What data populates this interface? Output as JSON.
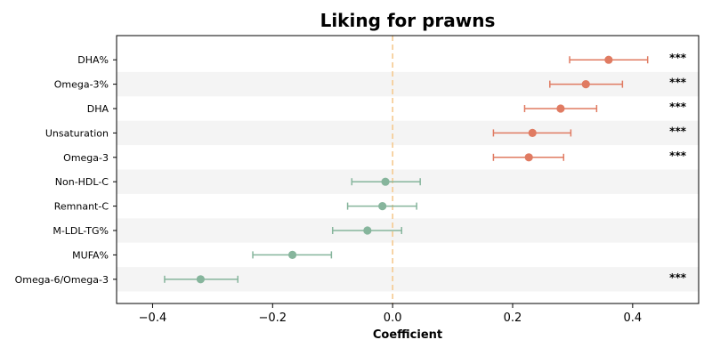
{
  "chart_data": {
    "type": "forest",
    "title": "Liking for prawns",
    "xlabel": "Coefficient",
    "ylabel": "",
    "xlim": [
      -0.46,
      0.51
    ],
    "xticks": [
      -0.4,
      -0.2,
      0.0,
      0.2,
      0.4
    ],
    "xtick_labels": [
      "−0.4",
      "−0.2",
      "0.0",
      "0.2",
      "0.4"
    ],
    "reference_line": 0.0,
    "row_shading": "alternating light grey",
    "colors": {
      "positive": "#e07b62",
      "negative": "#86b59c",
      "reference": "#f5c98f",
      "shade": "#f4f4f4"
    },
    "rows": [
      {
        "label": "DHA%",
        "estimate": 0.36,
        "lower": 0.295,
        "upper": 0.425,
        "sig": "***"
      },
      {
        "label": "Omega-3%",
        "estimate": 0.322,
        "lower": 0.262,
        "upper": 0.383,
        "sig": "***"
      },
      {
        "label": "DHA",
        "estimate": 0.28,
        "lower": 0.22,
        "upper": 0.34,
        "sig": "***"
      },
      {
        "label": "Unsaturation",
        "estimate": 0.233,
        "lower": 0.168,
        "upper": 0.297,
        "sig": "***"
      },
      {
        "label": "Omega-3",
        "estimate": 0.227,
        "lower": 0.168,
        "upper": 0.285,
        "sig": "***"
      },
      {
        "label": "Non-HDL-C",
        "estimate": -0.012,
        "lower": -0.068,
        "upper": 0.046,
        "sig": ""
      },
      {
        "label": "Remnant-C",
        "estimate": -0.017,
        "lower": -0.075,
        "upper": 0.04,
        "sig": ""
      },
      {
        "label": "M-LDL-TG%",
        "estimate": -0.042,
        "lower": -0.1,
        "upper": 0.015,
        "sig": ""
      },
      {
        "label": "MUFA%",
        "estimate": -0.167,
        "lower": -0.233,
        "upper": -0.102,
        "sig": ""
      },
      {
        "label": "Omega-6/Omega-3",
        "estimate": -0.32,
        "lower": -0.38,
        "upper": -0.258,
        "sig": "***"
      }
    ]
  }
}
